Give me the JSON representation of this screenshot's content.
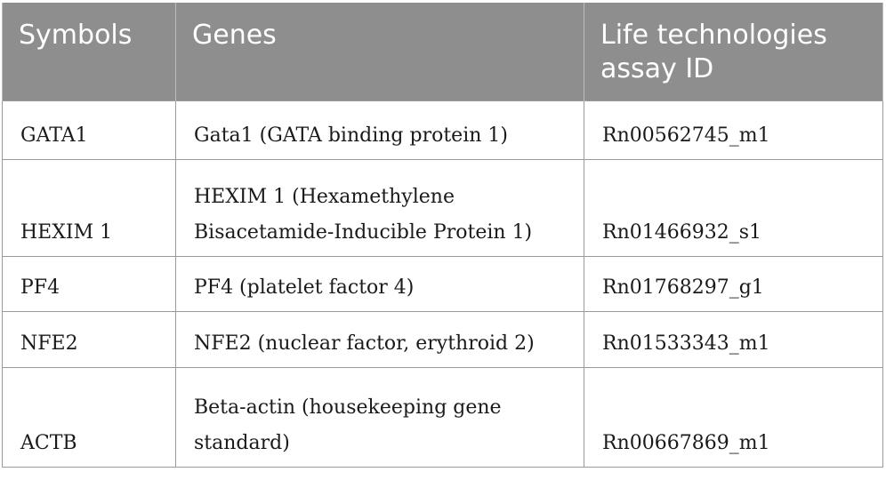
{
  "table": {
    "headers": [
      "Symbols",
      "Genes",
      "Life technologies assay ID"
    ],
    "rows": [
      {
        "symbol": "GATA1",
        "gene": "Gata1 (GATA binding protein 1)",
        "assay_id": "Rn00562745_m1"
      },
      {
        "symbol": "HEXIM 1",
        "gene": "HEXIM 1 (Hexamethylene Bisacetamide-Inducible Protein 1)",
        "assay_id": "Rn01466932_s1"
      },
      {
        "symbol": "PF4",
        "gene": "PF4 (platelet factor 4)",
        "assay_id": "Rn01768297_g1"
      },
      {
        "symbol": "NFE2",
        "gene": "NFE2 (nuclear factor, erythroid 2)",
        "assay_id": "Rn01533343_m1"
      },
      {
        "symbol": "ACTB",
        "gene": "Beta-actin (housekeeping gene standard)",
        "assay_id": "Rn00667869_m1"
      }
    ]
  }
}
